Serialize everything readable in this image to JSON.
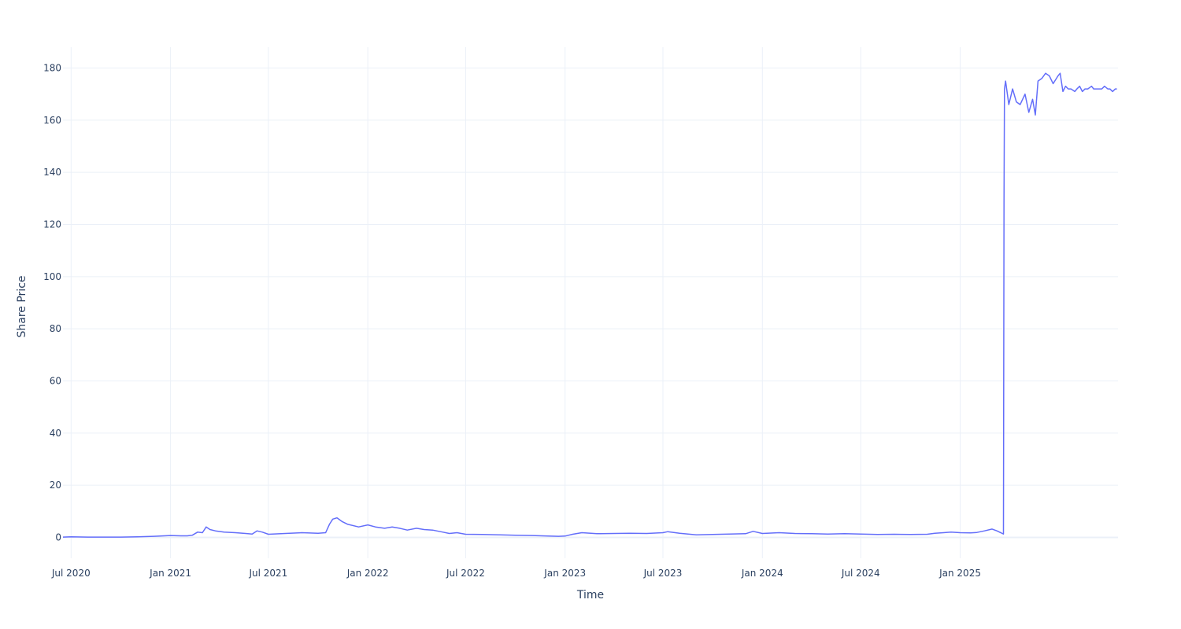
{
  "chart_data": {
    "type": "line",
    "title": "",
    "xlabel": "Time",
    "ylabel": "Share Price",
    "grid": true,
    "legend": "none",
    "line_color": "#636efa",
    "grid_color": "#ebf0f8",
    "text_color": "#2a3f5f",
    "xlim": [
      "2020-06-16",
      "2025-10-20"
    ],
    "ylim": [
      -8,
      188
    ],
    "x_ticks": [
      {
        "date": "2020-07-01",
        "label": "Jul 2020"
      },
      {
        "date": "2021-01-01",
        "label": "Jan 2021"
      },
      {
        "date": "2021-07-01",
        "label": "Jul 2021"
      },
      {
        "date": "2022-01-01",
        "label": "Jan 2022"
      },
      {
        "date": "2022-07-01",
        "label": "Jul 2022"
      },
      {
        "date": "2023-01-01",
        "label": "Jan 2023"
      },
      {
        "date": "2023-07-01",
        "label": "Jul 2023"
      },
      {
        "date": "2024-01-01",
        "label": "Jan 2024"
      },
      {
        "date": "2024-07-01",
        "label": "Jul 2024"
      },
      {
        "date": "2025-01-01",
        "label": "Jan 2025"
      }
    ],
    "y_ticks": [
      {
        "value": 0,
        "label": "0"
      },
      {
        "value": 20,
        "label": "20"
      },
      {
        "value": 40,
        "label": "40"
      },
      {
        "value": 60,
        "label": "60"
      },
      {
        "value": 80,
        "label": "80"
      },
      {
        "value": 100,
        "label": "100"
      },
      {
        "value": 120,
        "label": "120"
      },
      {
        "value": 140,
        "label": "140"
      },
      {
        "value": 160,
        "label": "160"
      },
      {
        "value": 180,
        "label": "180"
      }
    ],
    "series": [
      {
        "x": [
          "2020-06-16",
          "2020-07-01",
          "2020-08-01",
          "2020-09-01",
          "2020-10-01",
          "2020-11-01",
          "2020-12-01",
          "2020-12-20",
          "2021-01-01",
          "2021-01-20",
          "2021-02-01",
          "2021-02-10",
          "2021-02-20",
          "2021-03-01",
          "2021-03-08",
          "2021-03-15",
          "2021-03-25",
          "2021-04-10",
          "2021-05-01",
          "2021-05-20",
          "2021-06-01",
          "2021-06-10",
          "2021-06-20",
          "2021-07-01",
          "2021-08-01",
          "2021-09-01",
          "2021-10-01",
          "2021-10-15",
          "2021-10-22",
          "2021-10-28",
          "2021-11-05",
          "2021-11-15",
          "2021-11-25",
          "2021-12-15",
          "2022-01-01",
          "2022-01-15",
          "2022-02-01",
          "2022-02-15",
          "2022-03-01",
          "2022-03-15",
          "2022-04-01",
          "2022-04-15",
          "2022-05-01",
          "2022-05-20",
          "2022-06-01",
          "2022-06-15",
          "2022-07-01",
          "2022-08-01",
          "2022-09-01",
          "2022-10-01",
          "2022-11-01",
          "2022-12-01",
          "2022-12-20",
          "2023-01-01",
          "2023-01-15",
          "2023-02-01",
          "2023-03-01",
          "2023-04-01",
          "2023-05-01",
          "2023-06-01",
          "2023-07-01",
          "2023-07-10",
          "2023-08-01",
          "2023-09-01",
          "2023-10-01",
          "2023-11-01",
          "2023-12-01",
          "2023-12-15",
          "2024-01-01",
          "2024-02-01",
          "2024-03-01",
          "2024-04-01",
          "2024-05-01",
          "2024-06-01",
          "2024-07-01",
          "2024-08-01",
          "2024-09-01",
          "2024-10-01",
          "2024-11-01",
          "2024-11-15",
          "2024-12-01",
          "2024-12-15",
          "2025-01-01",
          "2025-01-20",
          "2025-02-01",
          "2025-02-15",
          "2025-03-01",
          "2025-03-10",
          "2025-03-20",
          "2025-03-22",
          "2025-03-23",
          "2025-03-24",
          "2025-03-26",
          "2025-04-01",
          "2025-04-08",
          "2025-04-15",
          "2025-04-22",
          "2025-05-01",
          "2025-05-08",
          "2025-05-15",
          "2025-05-20",
          "2025-05-25",
          "2025-06-01",
          "2025-06-08",
          "2025-06-15",
          "2025-06-22",
          "2025-07-01",
          "2025-07-05",
          "2025-07-10",
          "2025-07-15",
          "2025-07-20",
          "2025-07-25",
          "2025-08-01",
          "2025-08-05",
          "2025-08-10",
          "2025-08-15",
          "2025-08-20",
          "2025-08-25",
          "2025-09-01",
          "2025-09-05",
          "2025-09-10",
          "2025-09-15",
          "2025-09-20",
          "2025-09-25",
          "2025-10-01",
          "2025-10-05",
          "2025-10-10",
          "2025-10-15",
          "2025-10-18"
        ],
        "y": [
          0.1,
          0.2,
          0.1,
          0.1,
          0.1,
          0.2,
          0.4,
          0.6,
          0.7,
          0.6,
          0.6,
          0.8,
          2.0,
          1.8,
          4.0,
          3.0,
          2.5,
          2.0,
          1.8,
          1.5,
          1.3,
          2.5,
          2.0,
          1.2,
          1.5,
          1.8,
          1.6,
          1.8,
          5.0,
          7.0,
          7.5,
          6.0,
          5.0,
          4.0,
          4.8,
          4.0,
          3.5,
          4.0,
          3.5,
          2.8,
          3.5,
          3.0,
          2.8,
          2.0,
          1.5,
          1.8,
          1.2,
          1.1,
          1.0,
          0.8,
          0.7,
          0.5,
          0.4,
          0.5,
          1.2,
          1.8,
          1.4,
          1.5,
          1.6,
          1.5,
          1.8,
          2.2,
          1.6,
          1.0,
          1.1,
          1.3,
          1.4,
          2.3,
          1.5,
          1.8,
          1.5,
          1.4,
          1.3,
          1.4,
          1.3,
          1.1,
          1.2,
          1.1,
          1.2,
          1.6,
          1.8,
          2.0,
          1.8,
          1.7,
          1.9,
          2.5,
          3.2,
          2.5,
          1.5,
          1.3,
          129,
          172,
          175,
          166,
          172,
          167,
          166,
          170,
          163,
          168,
          162,
          175,
          176,
          178,
          177,
          174,
          177,
          178,
          171,
          173,
          172,
          172,
          171,
          172,
          173,
          171,
          172,
          172,
          173,
          172,
          172,
          172,
          172,
          173,
          172,
          172,
          171,
          172,
          172
        ]
      }
    ]
  }
}
